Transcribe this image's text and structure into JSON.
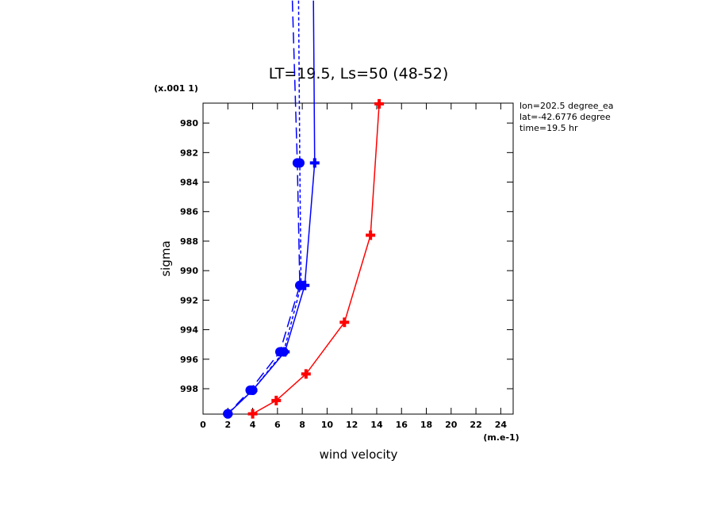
{
  "chart_data": {
    "type": "line",
    "title": "LT=19.5, Ls=50 (48-52)",
    "y_label": "sigma",
    "y_unit": "(x.001 1)",
    "x_label": "wind velocity",
    "x_unit": "(m.e-1)",
    "annotations": [
      "lon=202.5 degree_ea",
      "lat=-42.6776 degree",
      "time=19.5 hr"
    ],
    "xlim": [
      0,
      25
    ],
    "xticks": [
      0,
      2,
      4,
      6,
      8,
      10,
      12,
      14,
      16,
      18,
      20,
      22,
      24
    ],
    "ylim": [
      999.72,
      978.65
    ],
    "yticks": [
      980,
      982,
      984,
      986,
      988,
      990,
      992,
      994,
      996,
      998
    ],
    "series": [
      {
        "color": "#0000ff",
        "dash": "none",
        "marker": "plus",
        "sigma": [
          971.7,
          982.7,
          991.0,
          995.5,
          998.1,
          999.7
        ],
        "values": [
          8.9,
          9.0,
          8.2,
          6.6,
          4.0,
          2.0
        ]
      },
      {
        "color": "#0000ff",
        "dash": "14 6",
        "marker": "circle",
        "sigma": [
          971.7,
          982.7,
          991.0,
          995.5,
          998.1,
          999.7
        ],
        "values": [
          7.2,
          7.6,
          7.8,
          6.2,
          3.8,
          2.0
        ]
      },
      {
        "color": "#0000ff",
        "dash": "4 3",
        "marker": "circle",
        "sigma": [
          971.7,
          982.7,
          991.0,
          995.5,
          998.1,
          999.7
        ],
        "values": [
          7.7,
          7.8,
          7.9,
          6.5,
          4.0,
          2.0
        ]
      },
      {
        "color": "#ff0000",
        "dash": "none",
        "marker": "plus",
        "sigma": [
          978.7,
          987.6,
          993.5,
          997.0,
          998.8,
          999.7
        ],
        "values": [
          14.2,
          13.5,
          11.4,
          8.3,
          5.9,
          4.0
        ]
      }
    ]
  }
}
